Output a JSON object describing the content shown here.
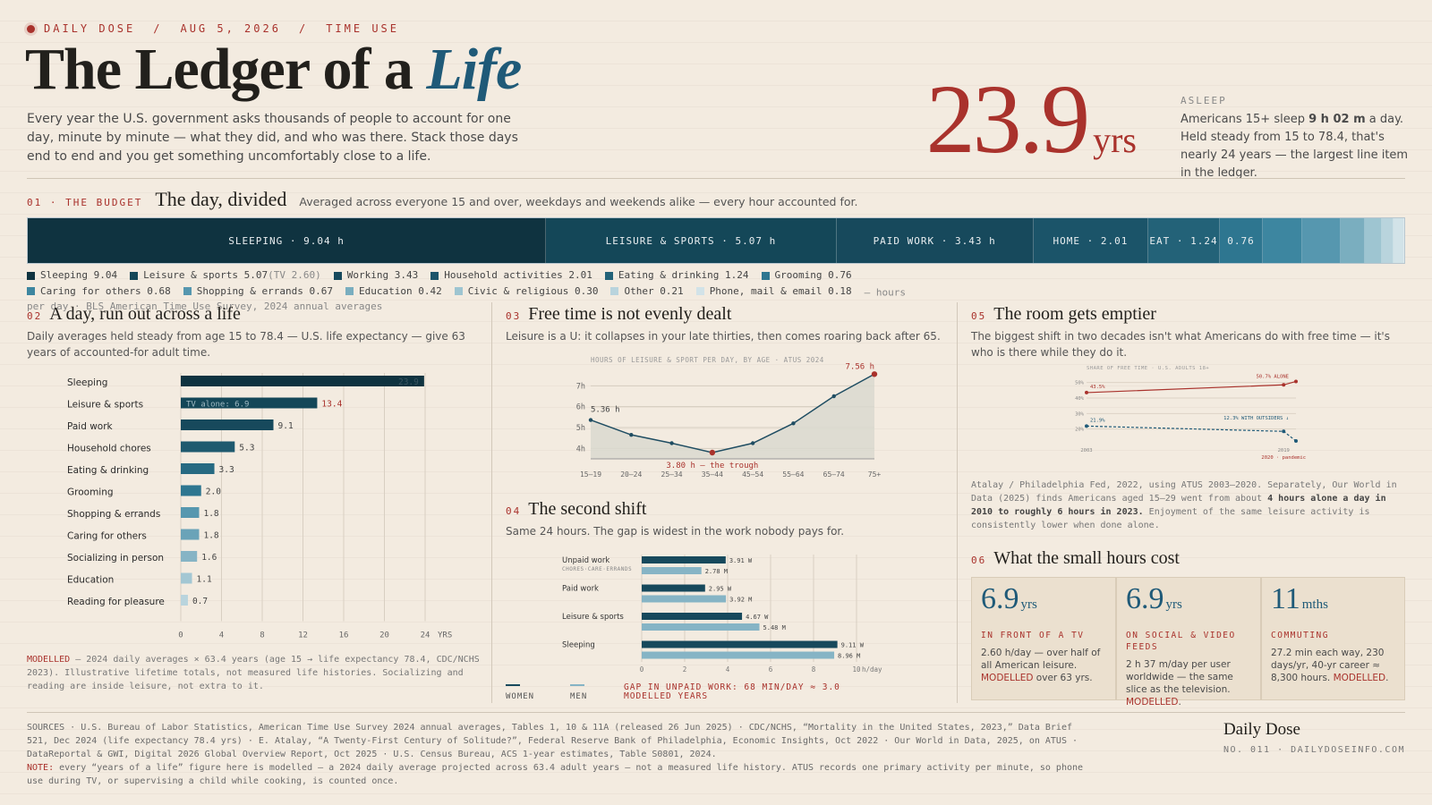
{
  "header": {
    "kicker": [
      "DAILY DOSE",
      "AUG 5, 2026",
      "TIME USE"
    ],
    "kicker_sep": "/",
    "title_main": "The Ledger of a ",
    "title_em": "Life",
    "intro": "Every year the U.S. government asks thousands of people to account for one day, minute by minute — what they did, and who was there. Stack those days end to end and you get something uncomfortably close to a life.",
    "big_value": "23.9",
    "big_unit": "yrs",
    "asleep_label": "ASLEEP",
    "asleep_text_1": "Americans 15+ sleep ",
    "asleep_text_bold": "9 h 02 m",
    "asleep_text_2": " a day. Held steady from 15 to 78.4, that's nearly 24 years — the largest line item in the ledger."
  },
  "budget": {
    "num": "01 · THE BUDGET",
    "title": "The day, divided",
    "desc": "Averaged across everyone 15 and over, weekdays and weekends alike — every hour accounted for.",
    "note": "— hours per day · BLS American Time Use Survey, 2024 annual averages"
  },
  "s2": {
    "num": "02",
    "title": "A day, run out across a life",
    "desc": "Daily averages held steady from age 15 to 78.4 — U.S. life expectancy — give 63 years of accounted-for adult time.",
    "note_label": "MODELLED",
    "note": " — 2024 daily averages × 63.4 years (age 15 → life expectancy 78.4, CDC/NCHS 2023). Illustrative lifetime totals, not measured life histories. Socializing and reading are inside leisure, not extra to it."
  },
  "s3": {
    "num": "03",
    "title": "Free time is not evenly dealt",
    "desc": "Leisure is a U: it collapses in your late thirties, then comes roaring back after 65."
  },
  "s4": {
    "num": "04",
    "title": "The second shift",
    "desc": "Same 24 hours. The gap is widest in the work nobody pays for."
  },
  "s5": {
    "num": "05",
    "title": "The room gets emptier",
    "desc": "The biggest shift in two decades isn't what Americans do with free time — it's who is there while they do it.",
    "note_1": "Atalay / Philadelphia Fed, 2022, using ATUS 2003–2020. Separately, Our World in Data (2025) finds Americans aged 15–29 went from about ",
    "note_bold": "4 hours alone a day in 2010 to roughly 6 hours in 2023.",
    "note_2": " Enjoyment of the same leisure activity is consistently lower when done alone."
  },
  "s6": {
    "num": "06",
    "title": "What the small hours cost",
    "cards": [
      {
        "value": "6.9",
        "unit": "yrs",
        "key": "IN FRONT OF A TV",
        "desc": "2.60 h/day — over half of all American leisure. ",
        "tag": "MODELLED",
        "tail": " over 63 yrs."
      },
      {
        "value": "6.9",
        "unit": "yrs",
        "key": "ON SOCIAL & VIDEO FEEDS",
        "desc": "2 h 37 m/day per user worldwide — the same slice as the television. ",
        "tag": "MODELLED",
        "tail": "."
      },
      {
        "value": "11",
        "unit": "mths",
        "key": "COMMUTING",
        "desc": "27.2 min each way, 230 days/yr, 40-yr career ≈ 8,300 hours. ",
        "tag": "MODELLED",
        "tail": "."
      }
    ]
  },
  "footer": {
    "sources": "SOURCES · U.S. Bureau of Labor Statistics, American Time Use Survey 2024 annual averages, Tables 1, 10 & 11A (released 26 Jun 2025) · CDC/NCHS, “Mortality in the United States, 2023,” Data Brief 521, Dec 2024 (life expectancy 78.4 yrs) · E. Atalay, “A Twenty-First Century of Solitude?”, Federal Reserve Bank of Philadelphia, Economic Insights, Oct 2022 · Our World in Data, 2025, on ATUS · DataReportal & GWI, Digital 2026 Global Overview Report, Oct 2025 · U.S. Census Bureau, ACS 1-year estimates, Table S0801, 2024.",
    "note_label": "NOTE:",
    "note": " every “years of a life” figure here is modelled — a 2024 daily average projected across 63.4 adult years — not a measured life history. ATUS records one primary activity per minute, so phone use during TV, or supervising a child while cooking, is counted once.",
    "brand": "Daily Dose",
    "brand_meta": "NO. 011 · DAILYDOSEINFO.COM"
  },
  "chart_data": [
    {
      "type": "bar",
      "stacked": true,
      "title": "The day, divided",
      "unit": "hours per day",
      "categories": [
        "Sleeping",
        "Leisure & sports",
        "Working",
        "Household activities",
        "Eating & drinking",
        "Grooming",
        "Caring for others",
        "Shopping & errands",
        "Education",
        "Civic & religious",
        "Other",
        "Phone, mail & email"
      ],
      "values": [
        9.04,
        5.07,
        3.43,
        2.01,
        1.24,
        0.76,
        0.68,
        0.67,
        0.42,
        0.3,
        0.21,
        0.18
      ],
      "segment_labels": [
        "SLEEPING · 9.04 h",
        "LEISURE & SPORTS · 5.07 h",
        "PAID WORK · 3.43 h",
        "HOME · 2.01",
        "EAT · 1.24",
        "0.76",
        "",
        "",
        "",
        "",
        "",
        ""
      ],
      "legend_labels": [
        "Sleeping 9.04",
        "Leisure & sports 5.07",
        "Working 3.43",
        "Household activities 2.01",
        "Eating & drinking 1.24",
        "Grooming 0.76",
        "Caring for others 0.68",
        "Shopping & errands 0.67",
        "Education 0.42",
        "Civic & religious 0.30",
        "Other 0.21",
        "Phone, mail & email 0.18"
      ],
      "legend_extra": {
        "index": 1,
        "text": " (TV 2.60)"
      },
      "colors": [
        "#0f3340",
        "#144758",
        "#17495c",
        "#1b5469",
        "#236278",
        "#2e7690",
        "#3d86a0",
        "#5697af",
        "#7aaebf",
        "#9ec5d1",
        "#b9d4dd",
        "#d2e3e8"
      ]
    },
    {
      "type": "bar",
      "orientation": "horizontal",
      "categories": [
        "Sleeping",
        "Leisure & sports",
        "Paid work",
        "Household chores",
        "Eating & drinking",
        "Grooming",
        "Shopping & errands",
        "Caring for others",
        "Socializing in person",
        "Education",
        "Reading for pleasure"
      ],
      "values": [
        23.9,
        13.4,
        9.1,
        5.3,
        3.3,
        2.0,
        1.8,
        1.8,
        1.6,
        1.1,
        0.7
      ],
      "annotation": "TV alone: 6.9",
      "xticks": [
        0,
        4,
        8,
        12,
        16,
        20,
        24
      ],
      "xunit": "YRS",
      "xlim": [
        0,
        24
      ]
    },
    {
      "type": "area",
      "title": "HOURS OF LEISURE & SPORT PER DAY, BY AGE · ATUS 2024",
      "categories": [
        "15–19",
        "20–24",
        "25–34",
        "35–44",
        "45–54",
        "55–64",
        "65–74",
        "75+"
      ],
      "values": [
        5.36,
        4.65,
        4.25,
        3.8,
        4.25,
        5.2,
        6.5,
        7.56
      ],
      "yticks": [
        4,
        5,
        6,
        7
      ],
      "ylim": [
        3.5,
        7.7
      ],
      "labels": {
        "first": "5.36 h",
        "trough": "3.80 h — the trough",
        "last": "7.56 h"
      }
    },
    {
      "type": "bar",
      "orientation": "horizontal",
      "categories": [
        "Unpaid work",
        "Paid work",
        "Leisure & sports",
        "Sleeping"
      ],
      "sublabel": "CHORES·CARE·ERRANDS",
      "series": [
        {
          "name": "WOMEN",
          "values": [
            3.91,
            2.95,
            4.67,
            9.11
          ],
          "color": "#17495c"
        },
        {
          "name": "MEN",
          "values": [
            2.78,
            3.92,
            5.48,
            8.96
          ],
          "color": "#86b4c5"
        }
      ],
      "value_labels": {
        "WOMEN": [
          "3.91 W",
          "2.95 W",
          "4.67 W",
          "9.11 W"
        ],
        "MEN": [
          "2.78 M",
          "3.92 M",
          "5.48 M",
          "8.96 M"
        ]
      },
      "xticks": [
        0,
        2,
        4,
        6,
        8,
        10
      ],
      "xunit": "h/day",
      "xlim": [
        0,
        10
      ],
      "callout": "GAP IN UNPAID WORK: 68 MIN/DAY ≈ 3.0 MODELLED YEARS"
    },
    {
      "type": "line",
      "title": "SHARE OF FREE TIME · U.S. ADULTS 18+",
      "x": [
        2003,
        2019,
        2020
      ],
      "xticks": [
        "2003",
        "2019"
      ],
      "x_annotation": "2020 · pandemic",
      "series": [
        {
          "name": "ALONE",
          "values": [
            43.5,
            48.5,
            50.7
          ],
          "start_label": "43.5%",
          "end_label": "50.7% ALONE",
          "color": "#a9322c"
        },
        {
          "name": "WITH OUTSIDERS",
          "values": [
            21.9,
            18.5,
            12.3
          ],
          "start_label": "21.9%",
          "end_label": "12.3% WITH OUTSIDERS ↓",
          "color": "#1f5a78"
        }
      ],
      "yticks": [
        "20%",
        "30%",
        "40%",
        "50%"
      ],
      "ylim": [
        10,
        55
      ]
    }
  ]
}
